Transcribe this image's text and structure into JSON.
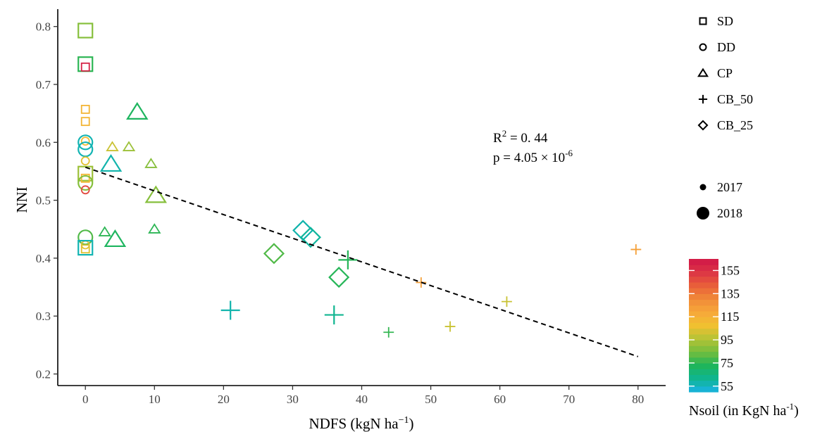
{
  "chart_data": {
    "type": "scatter",
    "xlabel_main": "NDFS (kgN  ha",
    "xlabel_sup": "−1",
    "xlabel_end": ")",
    "ylabel": "NNI",
    "xlim": [
      -4,
      84
    ],
    "ylim": [
      0.18,
      0.83
    ],
    "xticks": [
      0,
      10,
      20,
      30,
      40,
      50,
      60,
      70,
      80
    ],
    "yticks": [
      0.2,
      0.3,
      0.4,
      0.5,
      0.6,
      0.7,
      0.8
    ],
    "grid": false,
    "annotation": {
      "r2_base": "R",
      "r2_sup": "2",
      "r2_rest": " = 0. 44",
      "p_base": "p = 4.05 × 10",
      "p_sup": "-6"
    },
    "regression_line": {
      "x": [
        0,
        80
      ],
      "y": [
        0.557,
        0.23
      ],
      "style": "dashed"
    },
    "legend_shape": [
      {
        "label": "SD",
        "shape": "square"
      },
      {
        "label": "DD",
        "shape": "circle"
      },
      {
        "label": "CP",
        "shape": "triangle"
      },
      {
        "label": "CB_50",
        "shape": "plus"
      },
      {
        "label": "CB_25",
        "shape": "diamond"
      }
    ],
    "legend_size": [
      {
        "label": "2017",
        "size": "small"
      },
      {
        "label": "2018",
        "size": "large"
      }
    ],
    "colorbar": {
      "title_main": "Nsoil (in KgN ha",
      "title_sup": "-1",
      "title_end": ")",
      "min": 50,
      "max": 165,
      "ticks": [
        55,
        75,
        95,
        115,
        135,
        155
      ],
      "colors": [
        "#1ab3e6",
        "#0fb592",
        "#1fb55a",
        "#72bd3e",
        "#b4c336",
        "#f0c030",
        "#f7a83a",
        "#f08a38",
        "#e9603a",
        "#dc3545",
        "#d01648"
      ]
    },
    "points": [
      {
        "x": 0,
        "y": 0.793,
        "shape": "square",
        "size": "large",
        "nsoil": 88
      },
      {
        "x": 0,
        "y": 0.735,
        "shape": "square",
        "size": "large",
        "nsoil": 75
      },
      {
        "x": 0,
        "y": 0.73,
        "shape": "square",
        "size": "small",
        "nsoil": 160
      },
      {
        "x": 0,
        "y": 0.657,
        "shape": "square",
        "size": "small",
        "nsoil": 113
      },
      {
        "x": 0,
        "y": 0.636,
        "shape": "square",
        "size": "small",
        "nsoil": 113
      },
      {
        "x": 0,
        "y": 0.602,
        "shape": "circle",
        "size": "small",
        "nsoil": 110
      },
      {
        "x": 0,
        "y": 0.6,
        "shape": "circle",
        "size": "large",
        "nsoil": 57
      },
      {
        "x": 0,
        "y": 0.588,
        "shape": "circle",
        "size": "large",
        "nsoil": 57
      },
      {
        "x": 0,
        "y": 0.568,
        "shape": "circle",
        "size": "small",
        "nsoil": 105
      },
      {
        "x": 0,
        "y": 0.546,
        "shape": "square",
        "size": "large",
        "nsoil": 92
      },
      {
        "x": 0,
        "y": 0.538,
        "shape": "square",
        "size": "small",
        "nsoil": 112
      },
      {
        "x": 0,
        "y": 0.53,
        "shape": "circle",
        "size": "large",
        "nsoil": 88
      },
      {
        "x": 0,
        "y": 0.518,
        "shape": "circle",
        "size": "small",
        "nsoil": 148
      },
      {
        "x": 0,
        "y": 0.436,
        "shape": "circle",
        "size": "large",
        "nsoil": 80
      },
      {
        "x": 0,
        "y": 0.423,
        "shape": "circle",
        "size": "small",
        "nsoil": 105
      },
      {
        "x": 0,
        "y": 0.418,
        "shape": "square",
        "size": "large",
        "nsoil": 57
      },
      {
        "x": 0,
        "y": 0.416,
        "shape": "square",
        "size": "small",
        "nsoil": 104
      },
      {
        "x": 3.7,
        "y": 0.562,
        "shape": "triangle",
        "size": "large",
        "nsoil": 58
      },
      {
        "x": 3.9,
        "y": 0.592,
        "shape": "triangle",
        "size": "small",
        "nsoil": 100
      },
      {
        "x": 6.3,
        "y": 0.592,
        "shape": "triangle",
        "size": "small",
        "nsoil": 92
      },
      {
        "x": 7.5,
        "y": 0.652,
        "shape": "triangle",
        "size": "large",
        "nsoil": 72
      },
      {
        "x": 9.5,
        "y": 0.563,
        "shape": "triangle",
        "size": "small",
        "nsoil": 88
      },
      {
        "x": 10.2,
        "y": 0.508,
        "shape": "triangle",
        "size": "large",
        "nsoil": 88
      },
      {
        "x": 10,
        "y": 0.45,
        "shape": "triangle",
        "size": "small",
        "nsoil": 75
      },
      {
        "x": 2.8,
        "y": 0.445,
        "shape": "triangle",
        "size": "small",
        "nsoil": 75
      },
      {
        "x": 4.3,
        "y": 0.432,
        "shape": "triangle",
        "size": "large",
        "nsoil": 72
      },
      {
        "x": 21,
        "y": 0.31,
        "shape": "plus",
        "size": "large",
        "nsoil": 58
      },
      {
        "x": 27.3,
        "y": 0.408,
        "shape": "diamond",
        "size": "large",
        "nsoil": 80
      },
      {
        "x": 31.5,
        "y": 0.448,
        "shape": "diamond",
        "size": "large",
        "nsoil": 58
      },
      {
        "x": 32.6,
        "y": 0.436,
        "shape": "diamond",
        "size": "large",
        "nsoil": 60
      },
      {
        "x": 36.7,
        "y": 0.367,
        "shape": "diamond",
        "size": "large",
        "nsoil": 74
      },
      {
        "x": 36,
        "y": 0.302,
        "shape": "plus",
        "size": "large",
        "nsoil": 62
      },
      {
        "x": 38,
        "y": 0.397,
        "shape": "plus",
        "size": "large",
        "nsoil": 74
      },
      {
        "x": 43.9,
        "y": 0.272,
        "shape": "plus",
        "size": "small",
        "nsoil": 76
      },
      {
        "x": 48.6,
        "y": 0.358,
        "shape": "plus",
        "size": "small",
        "nsoil": 122
      },
      {
        "x": 52.8,
        "y": 0.282,
        "shape": "plus",
        "size": "small",
        "nsoil": 100
      },
      {
        "x": 61,
        "y": 0.325,
        "shape": "plus",
        "size": "small",
        "nsoil": 100
      },
      {
        "x": 79.7,
        "y": 0.415,
        "shape": "plus",
        "size": "small",
        "nsoil": 122
      }
    ]
  }
}
